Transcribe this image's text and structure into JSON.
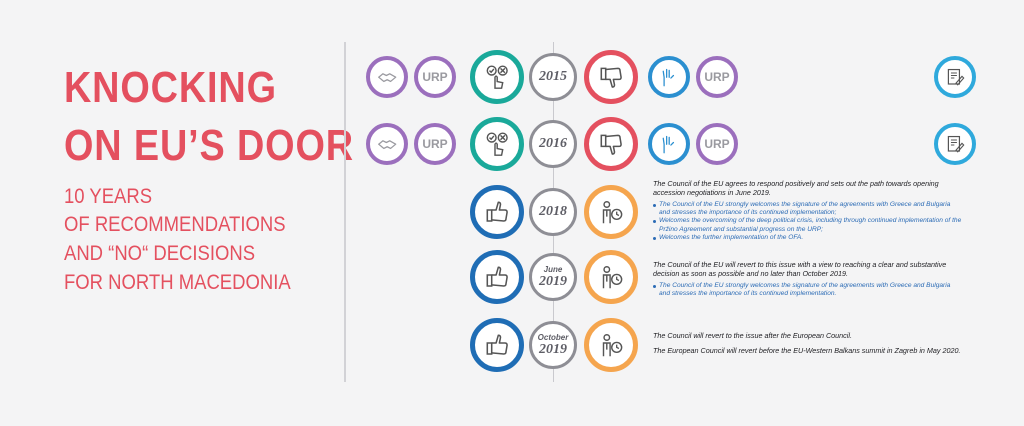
{
  "title": {
    "line1": "KNOCKING",
    "line2": "ON EU’S DOOR"
  },
  "subtitle": {
    "line1": "10 YEARS",
    "line2": "OF RECOMMENDATIONS",
    "line3": "AND “NO“ DECISIONS",
    "line4": "FOR NORTH MACEDONIA"
  },
  "timeline": {
    "urp_label": "URP",
    "y2015": "2015",
    "y2016": "2016",
    "y2018": "2018",
    "june_label": "June",
    "y2019": "2019",
    "october_label": "October"
  },
  "notes": {
    "n2018": {
      "main": "The Council of the EU agrees to respond positively and sets out the path towards opening accession negotiations in June 2019.",
      "bullets": [
        "The Council of the EU strongly welcomes the signature of the agreements with Greece and Bulgaria and stresses the importance of its continued implementation;",
        "Welcomes the overcoming of the deep political crisis, including through continued implementation of the Pržino Agreement and substantial progress on the URP;",
        "Welcomes the further implementation of the OFA."
      ]
    },
    "njune2019": {
      "main": "The Council of the EU will revert to this issue with a view to reaching a clear and substantive decision as soon as possible and no later than October 2019.",
      "bullets": [
        "The Council of the EU strongly welcomes the signature of the agreements with Greece and Bulgaria and stresses the importance of its continued implementation."
      ]
    },
    "noct2019": {
      "main1": "The Council will revert to the issue after the European Council.",
      "main2": "The European Council will revert before the EU-Western Balkans summit in Zagreb in May 2020."
    }
  },
  "colors": {
    "title": "#e4505f",
    "purple": "#9b6fbd",
    "teal": "#1aa99a",
    "red": "#e4505f",
    "blue": "#1f6db5",
    "orange": "#f5a54e",
    "grey": "#8e8e95"
  },
  "icons": [
    "handshake-icon",
    "checkbox-choice-icon",
    "thumbs-down-icon",
    "raised-hands-icon",
    "document-pen-icon",
    "thumbs-up-icon",
    "person-clock-icon"
  ]
}
